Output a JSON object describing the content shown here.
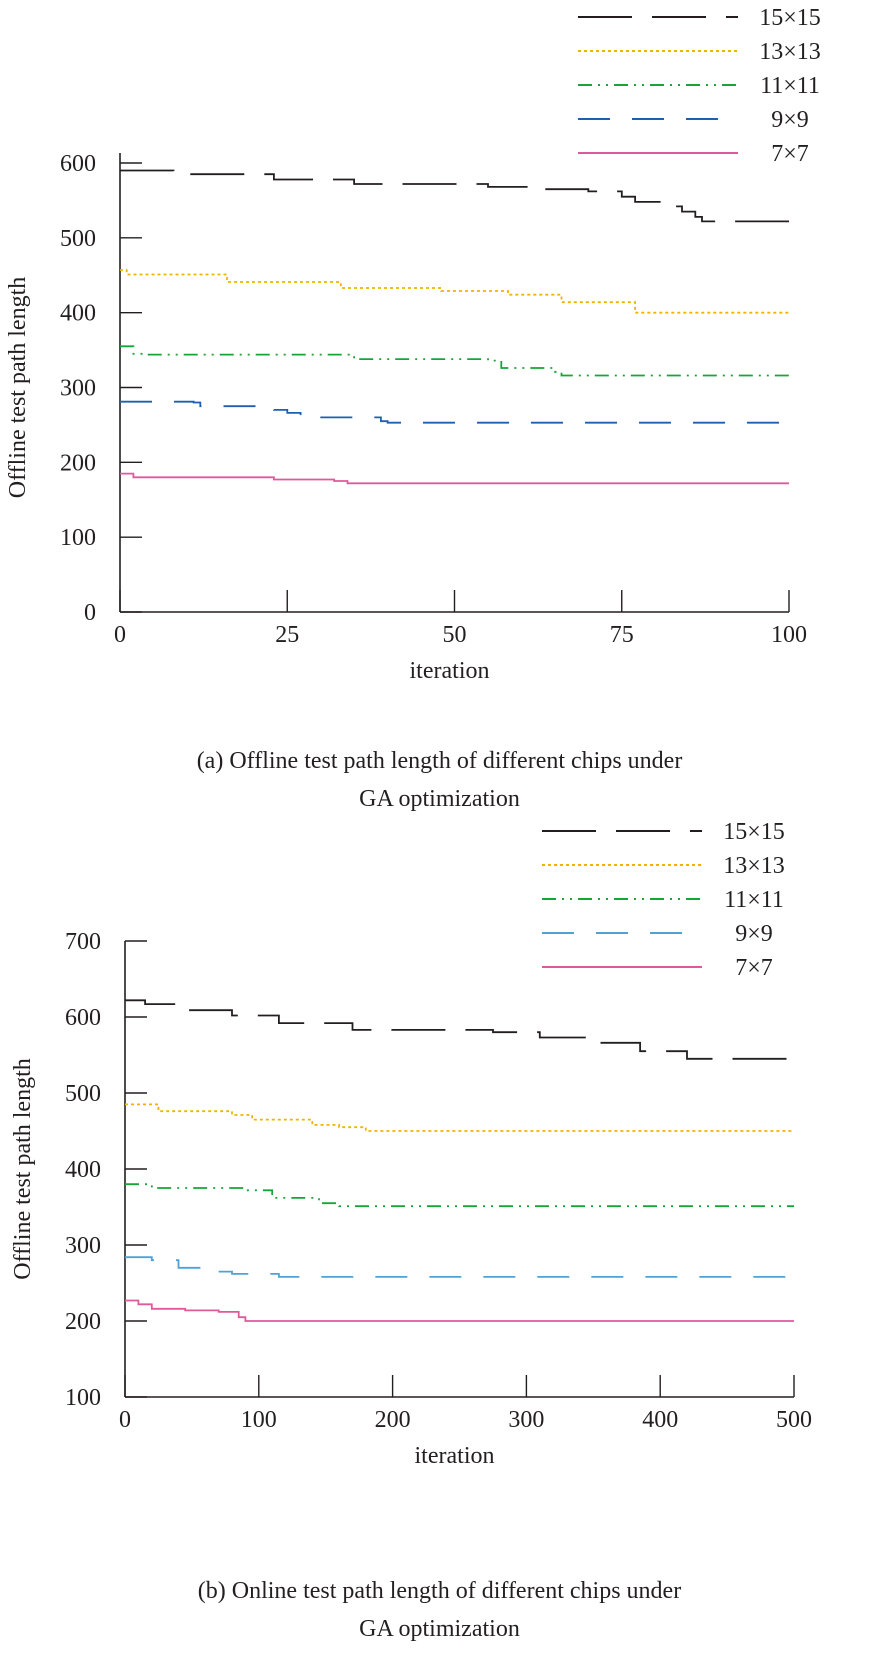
{
  "chart_data": [
    {
      "type": "line",
      "caption_line1": "(a)  Offline test path length of different chips under",
      "caption_line2": "GA optimization",
      "xlabel": "iteration",
      "ylabel": "Offline test path length",
      "xlim": [
        0,
        100
      ],
      "ylim": [
        0,
        600
      ],
      "xticks": [
        0,
        25,
        50,
        75,
        100
      ],
      "yticks": [
        0,
        100,
        200,
        300,
        400,
        500,
        600
      ],
      "legend_position": "top-right",
      "series": [
        {
          "name": "15×15",
          "color": "#231f20",
          "dash": "long-dash",
          "x": [
            0,
            8,
            23,
            35,
            55,
            61,
            70,
            75,
            77,
            81,
            84,
            86,
            87,
            100
          ],
          "y": [
            590,
            585,
            578,
            572,
            568,
            565,
            562,
            555,
            548,
            542,
            535,
            528,
            522,
            522
          ]
        },
        {
          "name": "13×13",
          "color": "#f0b400",
          "dash": "dotted",
          "x": [
            0,
            1,
            16,
            33,
            48,
            58,
            66,
            77,
            100
          ],
          "y": [
            457,
            451,
            441,
            433,
            429,
            424,
            414,
            400,
            401
          ]
        },
        {
          "name": "11×11",
          "color": "#16a536",
          "dash": "dash-dot",
          "x": [
            0,
            2,
            4,
            35,
            55,
            57,
            65,
            66,
            100
          ],
          "y": [
            355,
            345,
            344,
            338,
            336,
            326,
            321,
            316,
            316
          ]
        },
        {
          "name": "9×9",
          "color": "#1f5fb3",
          "dash": "dash",
          "x": [
            0,
            11,
            12,
            23,
            25,
            27,
            39,
            40,
            100
          ],
          "y": [
            281,
            280,
            275,
            270,
            266,
            260,
            255,
            253,
            253
          ]
        },
        {
          "name": "7×7",
          "color": "#de5a9a",
          "dash": "solid",
          "x": [
            0,
            2,
            23,
            32,
            34,
            100
          ],
          "y": [
            185,
            180,
            177,
            175,
            172,
            172
          ]
        }
      ]
    },
    {
      "type": "line",
      "caption_line1": "(b)  Online test path length of different chips under",
      "caption_line2": "GA optimization",
      "xlabel": "iteration",
      "ylabel": "Offline test path length",
      "xlim": [
        0,
        500
      ],
      "ylim": [
        100,
        700
      ],
      "xticks": [
        0,
        100,
        200,
        300,
        400,
        500
      ],
      "yticks": [
        100,
        200,
        300,
        400,
        500,
        600,
        700
      ],
      "legend_position": "top-right",
      "series": [
        {
          "name": "15×15",
          "color": "#231f20",
          "dash": "long-dash",
          "x": [
            0,
            15,
            40,
            80,
            115,
            170,
            275,
            310,
            350,
            385,
            420,
            500
          ],
          "y": [
            622,
            617,
            609,
            602,
            592,
            583,
            580,
            573,
            566,
            555,
            545,
            545
          ]
        },
        {
          "name": "13×13",
          "color": "#f0b400",
          "dash": "dotted",
          "x": [
            0,
            25,
            80,
            95,
            140,
            160,
            180,
            500
          ],
          "y": [
            485,
            476,
            471,
            465,
            458,
            455,
            450,
            450
          ]
        },
        {
          "name": "11×11",
          "color": "#16a536",
          "dash": "dash-dot",
          "x": [
            0,
            20,
            90,
            110,
            145,
            160,
            500
          ],
          "y": [
            380,
            375,
            372,
            362,
            355,
            351,
            351
          ]
        },
        {
          "name": "9×9",
          "color": "#4ea2d8",
          "dash": "dash",
          "x": [
            0,
            20,
            40,
            60,
            80,
            115,
            500
          ],
          "y": [
            284,
            280,
            270,
            265,
            262,
            258,
            258
          ]
        },
        {
          "name": "7×7",
          "color": "#de5a9a",
          "dash": "solid",
          "x": [
            0,
            10,
            20,
            45,
            70,
            85,
            90,
            500
          ],
          "y": [
            227,
            222,
            216,
            214,
            212,
            205,
            200,
            200
          ]
        }
      ]
    }
  ]
}
